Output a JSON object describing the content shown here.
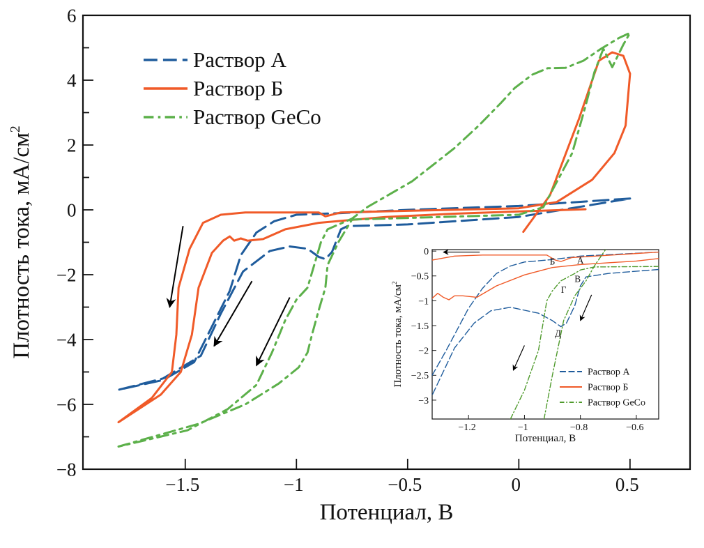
{
  "chart_data": [
    {
      "type": "line",
      "xlabel": "Потенциал, В",
      "ylabel": "Плотность тока, мА/см",
      "ylabel_sup": "2",
      "xlim": [
        -1.96,
        0.77
      ],
      "ylim": [
        -8,
        6
      ],
      "xticks": [
        -1.5,
        -1,
        -0.5,
        0,
        0.5
      ],
      "xtick_labels": [
        "−1.5",
        "−1",
        "−0.5",
        "0",
        "0.5"
      ],
      "yticks": [
        -8,
        -6,
        -4,
        -2,
        0,
        2,
        4,
        6
      ],
      "ytick_labels": [
        "−8",
        "−6",
        "−4",
        "−2",
        "0",
        "2",
        "4",
        "6"
      ],
      "grid": false,
      "legend_position": "top-left",
      "series": [
        {
          "name": "Раствор A",
          "color": "#1f5c9c",
          "dash": "dashed",
          "points": [
            [
              0.5,
              0.35
            ],
            [
              0,
              0.12
            ],
            [
              -0.5,
              0.0
            ],
            [
              -0.8,
              -0.1
            ],
            [
              -1.0,
              -0.15
            ],
            [
              -1.1,
              -0.35
            ],
            [
              -1.18,
              -0.7
            ],
            [
              -1.25,
              -1.4
            ],
            [
              -1.3,
              -2.5
            ],
            [
              -1.38,
              -3.6
            ],
            [
              -1.46,
              -4.7
            ],
            [
              -1.6,
              -5.25
            ],
            [
              -1.8,
              -5.55
            ],
            [
              -1.6,
              -5.2
            ],
            [
              -1.43,
              -4.5
            ],
            [
              -1.34,
              -3.2
            ],
            [
              -1.24,
              -1.9
            ],
            [
              -1.12,
              -1.27
            ],
            [
              -1.03,
              -1.13
            ],
            [
              -0.95,
              -1.2
            ],
            [
              -0.9,
              -1.45
            ],
            [
              -0.87,
              -1.52
            ],
            [
              -0.84,
              -1.3
            ],
            [
              -0.8,
              -0.6
            ],
            [
              -0.77,
              -0.5
            ],
            [
              -0.5,
              -0.45
            ],
            [
              0,
              -0.22
            ],
            [
              0.5,
              0.35
            ]
          ]
        },
        {
          "name": "Раствор Б",
          "color": "#f05a28",
          "dash": "solid",
          "points": [
            [
              0.02,
              -0.68
            ],
            [
              0.14,
              0.45
            ],
            [
              0.27,
              2.8
            ],
            [
              0.36,
              4.6
            ],
            [
              0.42,
              4.86
            ],
            [
              0.47,
              4.75
            ],
            [
              0.5,
              4.2
            ],
            [
              0.48,
              2.6
            ],
            [
              0.43,
              1.75
            ],
            [
              0.33,
              0.93
            ],
            [
              0.17,
              0.24
            ],
            [
              0,
              0.05
            ],
            [
              -0.5,
              -0.03
            ],
            [
              -0.8,
              -0.08
            ],
            [
              -0.87,
              -0.2
            ],
            [
              -0.9,
              -0.08
            ],
            [
              -1.23,
              -0.08
            ],
            [
              -1.34,
              -0.15
            ],
            [
              -1.42,
              -0.4
            ],
            [
              -1.48,
              -1.2
            ],
            [
              -1.53,
              -2.4
            ],
            [
              -1.54,
              -3.85
            ],
            [
              -1.56,
              -5.0
            ],
            [
              -1.65,
              -5.8
            ],
            [
              -1.8,
              -6.55
            ],
            [
              -1.61,
              -5.7
            ],
            [
              -1.52,
              -5.0
            ],
            [
              -1.47,
              -3.85
            ],
            [
              -1.44,
              -2.4
            ],
            [
              -1.38,
              -1.33
            ],
            [
              -1.33,
              -0.95
            ],
            [
              -1.3,
              -0.82
            ],
            [
              -1.28,
              -0.95
            ],
            [
              -1.25,
              -0.88
            ],
            [
              -1.22,
              -0.95
            ],
            [
              -1.15,
              -0.9
            ],
            [
              -1.05,
              -0.6
            ],
            [
              -0.9,
              -0.4
            ],
            [
              -0.6,
              -0.22
            ],
            [
              -0.3,
              -0.12
            ],
            [
              0,
              -0.05
            ],
            [
              0.3,
              0.02
            ]
          ]
        },
        {
          "name": "Раствор GeCo",
          "color": "#5cb04a",
          "dash": "dashdot",
          "points": [
            [
              -1.8,
              -7.3
            ],
            [
              -1.44,
              -6.6
            ],
            [
              -1.23,
              -6.0
            ],
            [
              -1.08,
              -5.36
            ],
            [
              -0.99,
              -4.86
            ],
            [
              -0.95,
              -4.4
            ],
            [
              -0.93,
              -3.85
            ],
            [
              -0.9,
              -3.1
            ],
            [
              -0.87,
              -2.4
            ],
            [
              -0.86,
              -1.7
            ],
            [
              -0.81,
              -0.98
            ],
            [
              -0.75,
              -0.3
            ],
            [
              -0.5,
              -0.25
            ],
            [
              0,
              -0.15
            ],
            [
              0.11,
              0.08
            ],
            [
              0.24,
              1.75
            ],
            [
              0.3,
              3.2
            ],
            [
              0.34,
              4.25
            ],
            [
              0.38,
              4.97
            ],
            [
              0.42,
              4.4
            ],
            [
              0.47,
              5.1
            ],
            [
              0.5,
              5.46
            ],
            [
              0.45,
              5.3
            ],
            [
              0.37,
              4.97
            ],
            [
              0.29,
              4.6
            ],
            [
              0.21,
              4.38
            ],
            [
              0.13,
              4.37
            ],
            [
              0.06,
              4.17
            ],
            [
              -0.02,
              3.75
            ],
            [
              -0.08,
              3.3
            ],
            [
              -0.18,
              2.6
            ],
            [
              -0.29,
              1.9
            ],
            [
              -0.48,
              0.88
            ],
            [
              -0.68,
              0.09
            ],
            [
              -0.75,
              -0.27
            ],
            [
              -0.86,
              -0.6
            ],
            [
              -0.89,
              -1.0
            ],
            [
              -0.92,
              -1.7
            ],
            [
              -0.95,
              -2.4
            ],
            [
              -1.0,
              -2.77
            ],
            [
              -1.05,
              -3.4
            ],
            [
              -1.11,
              -4.4
            ],
            [
              -1.18,
              -5.4
            ],
            [
              -1.31,
              -6.15
            ],
            [
              -1.49,
              -6.8
            ],
            [
              -1.8,
              -7.3
            ]
          ]
        }
      ],
      "arrows": [
        {
          "from": [
            -1.51,
            -0.5
          ],
          "to": [
            -1.57,
            -3.0
          ]
        },
        {
          "from": [
            -1.2,
            -2.2
          ],
          "to": [
            -1.37,
            -4.2
          ]
        },
        {
          "from": [
            -1.03,
            -2.7
          ],
          "to": [
            -1.18,
            -4.8
          ]
        }
      ]
    },
    {
      "type": "line",
      "inset": true,
      "xlabel": "Потенциал, В",
      "ylabel": "Плотность тока, мА/см",
      "ylabel_sup": "2",
      "xlim": [
        -1.33,
        -0.52
      ],
      "ylim": [
        -3.38,
        0.03
      ],
      "xticks": [
        -1.2,
        -1,
        -0.8,
        -0.6
      ],
      "xtick_labels": [
        "−1.2",
        "−1",
        "−0.8",
        "−0.6"
      ],
      "yticks": [
        -3,
        -2.5,
        -2,
        -1.5,
        -1,
        -0.5,
        0
      ],
      "ytick_labels": [
        "−3",
        "−2.5",
        "−2",
        "−1.5",
        "−1",
        "−0.5",
        "0"
      ],
      "grid": false,
      "legend_position": "bottom-right",
      "series": [
        {
          "name": "Раствор A",
          "color": "#1f5c9c",
          "dash": "dashed",
          "branches": [
            [
              [
                -1.33,
                -2.5
              ],
              [
                -1.28,
                -2.0
              ],
              [
                -1.2,
                -1.15
              ],
              [
                -1.15,
                -0.75
              ],
              [
                -1.1,
                -0.45
              ],
              [
                -1.05,
                -0.3
              ],
              [
                -1.0,
                -0.22
              ],
              [
                -0.9,
                -0.17
              ],
              [
                -0.8,
                -0.1
              ],
              [
                -0.52,
                -0.02
              ]
            ],
            [
              [
                -0.52,
                -0.37
              ],
              [
                -0.7,
                -0.45
              ],
              [
                -0.78,
                -0.52
              ],
              [
                -0.8,
                -0.7
              ],
              [
                -0.82,
                -1.1
              ],
              [
                -0.85,
                -1.45
              ],
              [
                -0.87,
                -1.52
              ],
              [
                -0.9,
                -1.4
              ],
              [
                -0.95,
                -1.25
              ],
              [
                -1.05,
                -1.13
              ],
              [
                -1.12,
                -1.2
              ],
              [
                -1.18,
                -1.45
              ],
              [
                -1.25,
                -1.95
              ],
              [
                -1.33,
                -2.9
              ]
            ]
          ]
        },
        {
          "name": "Раствор Б",
          "color": "#f05a28",
          "dash": "solid",
          "branches": [
            [
              [
                -1.33,
                -0.18
              ],
              [
                -1.25,
                -0.1
              ],
              [
                -1.15,
                -0.08
              ],
              [
                -0.92,
                -0.08
              ],
              [
                -0.89,
                -0.18
              ],
              [
                -0.87,
                -0.21
              ],
              [
                -0.83,
                -0.13
              ],
              [
                -0.52,
                -0.02
              ]
            ],
            [
              [
                -1.33,
                -0.95
              ],
              [
                -1.31,
                -0.85
              ],
              [
                -1.29,
                -0.93
              ],
              [
                -1.27,
                -0.98
              ],
              [
                -1.25,
                -0.9
              ],
              [
                -1.22,
                -0.9
              ],
              [
                -1.17,
                -0.93
              ],
              [
                -1.1,
                -0.7
              ],
              [
                -1.0,
                -0.48
              ],
              [
                -0.9,
                -0.33
              ],
              [
                -0.8,
                -0.27
              ],
              [
                -0.6,
                -0.2
              ],
              [
                -0.52,
                -0.15
              ]
            ]
          ]
        },
        {
          "name": "Раствор GeCo",
          "color": "#4f9a2c",
          "dash": "dashdot",
          "branches": [
            [
              [
                -1.05,
                -3.38
              ],
              [
                -1.0,
                -2.8
              ],
              [
                -0.95,
                -2.0
              ],
              [
                -0.92,
                -1.0
              ],
              [
                -0.9,
                -0.8
              ],
              [
                -0.87,
                -0.6
              ],
              [
                -0.82,
                -0.45
              ],
              [
                -0.8,
                -0.38
              ],
              [
                -0.75,
                -0.32
              ],
              [
                -0.52,
                -0.31
              ]
            ],
            [
              [
                -0.93,
                -3.38
              ],
              [
                -0.9,
                -2.5
              ],
              [
                -0.86,
                -1.4
              ],
              [
                -0.82,
                -0.9
              ],
              [
                -0.78,
                -0.6
              ],
              [
                -0.75,
                -0.3
              ],
              [
                -0.72,
                -0.05
              ],
              [
                -0.71,
                0.03
              ]
            ]
          ]
        }
      ],
      "annotations": [
        {
          "text": "Б",
          "x": -0.9,
          "y": -0.27
        },
        {
          "text": "А",
          "x": -0.8,
          "y": -0.25
        },
        {
          "text": "В",
          "x": -0.81,
          "y": -0.62
        },
        {
          "text": "Г",
          "x": -0.86,
          "y": -0.84
        },
        {
          "text": "Д",
          "x": -0.88,
          "y": -1.72
        }
      ],
      "arrows": [
        {
          "from": [
            -1.16,
            -0.02
          ],
          "to": [
            -1.29,
            -0.02
          ]
        },
        {
          "from": [
            -0.76,
            -0.88
          ],
          "to": [
            -0.8,
            -1.4
          ]
        },
        {
          "from": [
            -1.0,
            -1.9
          ],
          "to": [
            -1.04,
            -2.4
          ]
        }
      ]
    }
  ]
}
